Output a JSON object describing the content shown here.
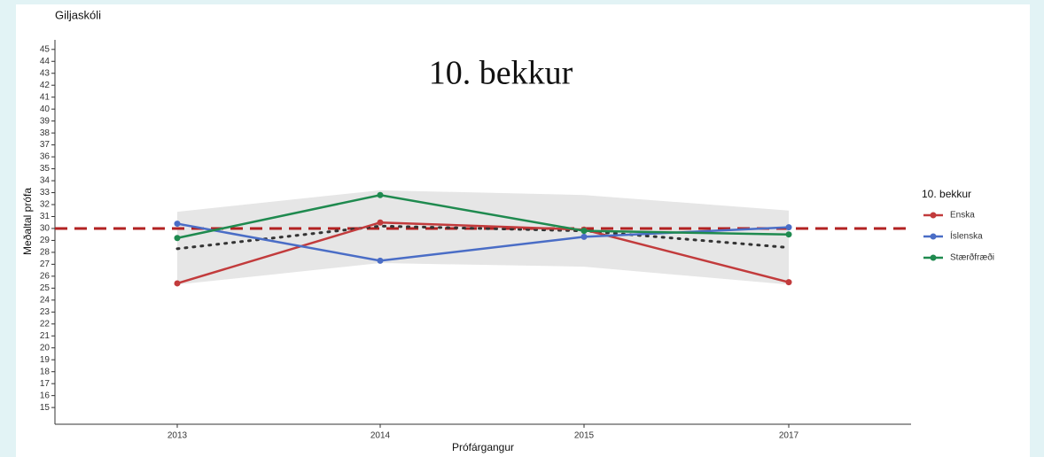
{
  "chart_data": {
    "type": "line",
    "school": "Giljaskóli",
    "title": "10. bekkur",
    "xlabel": "Prófárgangur",
    "ylabel": "Meðaltal prófa",
    "legend_title": "10. bekkur",
    "legend": "right",
    "categories": [
      "2013",
      "2014",
      "2015",
      "2017"
    ],
    "series": [
      {
        "name": "Enska",
        "color": "#c23b3c",
        "values": [
          25.4,
          30.5,
          29.9,
          25.5
        ]
      },
      {
        "name": "Íslenska",
        "color": "#4a6dc6",
        "values": [
          30.4,
          27.3,
          29.3,
          30.1
        ]
      },
      {
        "name": "Stærðfræði",
        "color": "#1f8a4f",
        "values": [
          29.2,
          32.8,
          29.8,
          29.5
        ]
      }
    ],
    "reference_line": {
      "value": 30,
      "color": "#b22222"
    },
    "trend": {
      "color": "#333333",
      "values": [
        28.3,
        30.2,
        29.8,
        28.4
      ]
    },
    "band": {
      "color": "#e6e6e6",
      "upper": [
        31.4,
        33.2,
        32.8,
        31.5
      ],
      "lower": [
        25.3,
        27.1,
        26.8,
        25.3
      ]
    },
    "ylim": [
      13.6,
      45.8
    ],
    "yticks": [
      15,
      16,
      17,
      18,
      19,
      20,
      21,
      22,
      23,
      24,
      25,
      26,
      27,
      28,
      29,
      30,
      31,
      32,
      33,
      34,
      35,
      36,
      37,
      38,
      39,
      40,
      41,
      42,
      43,
      44,
      45
    ]
  }
}
